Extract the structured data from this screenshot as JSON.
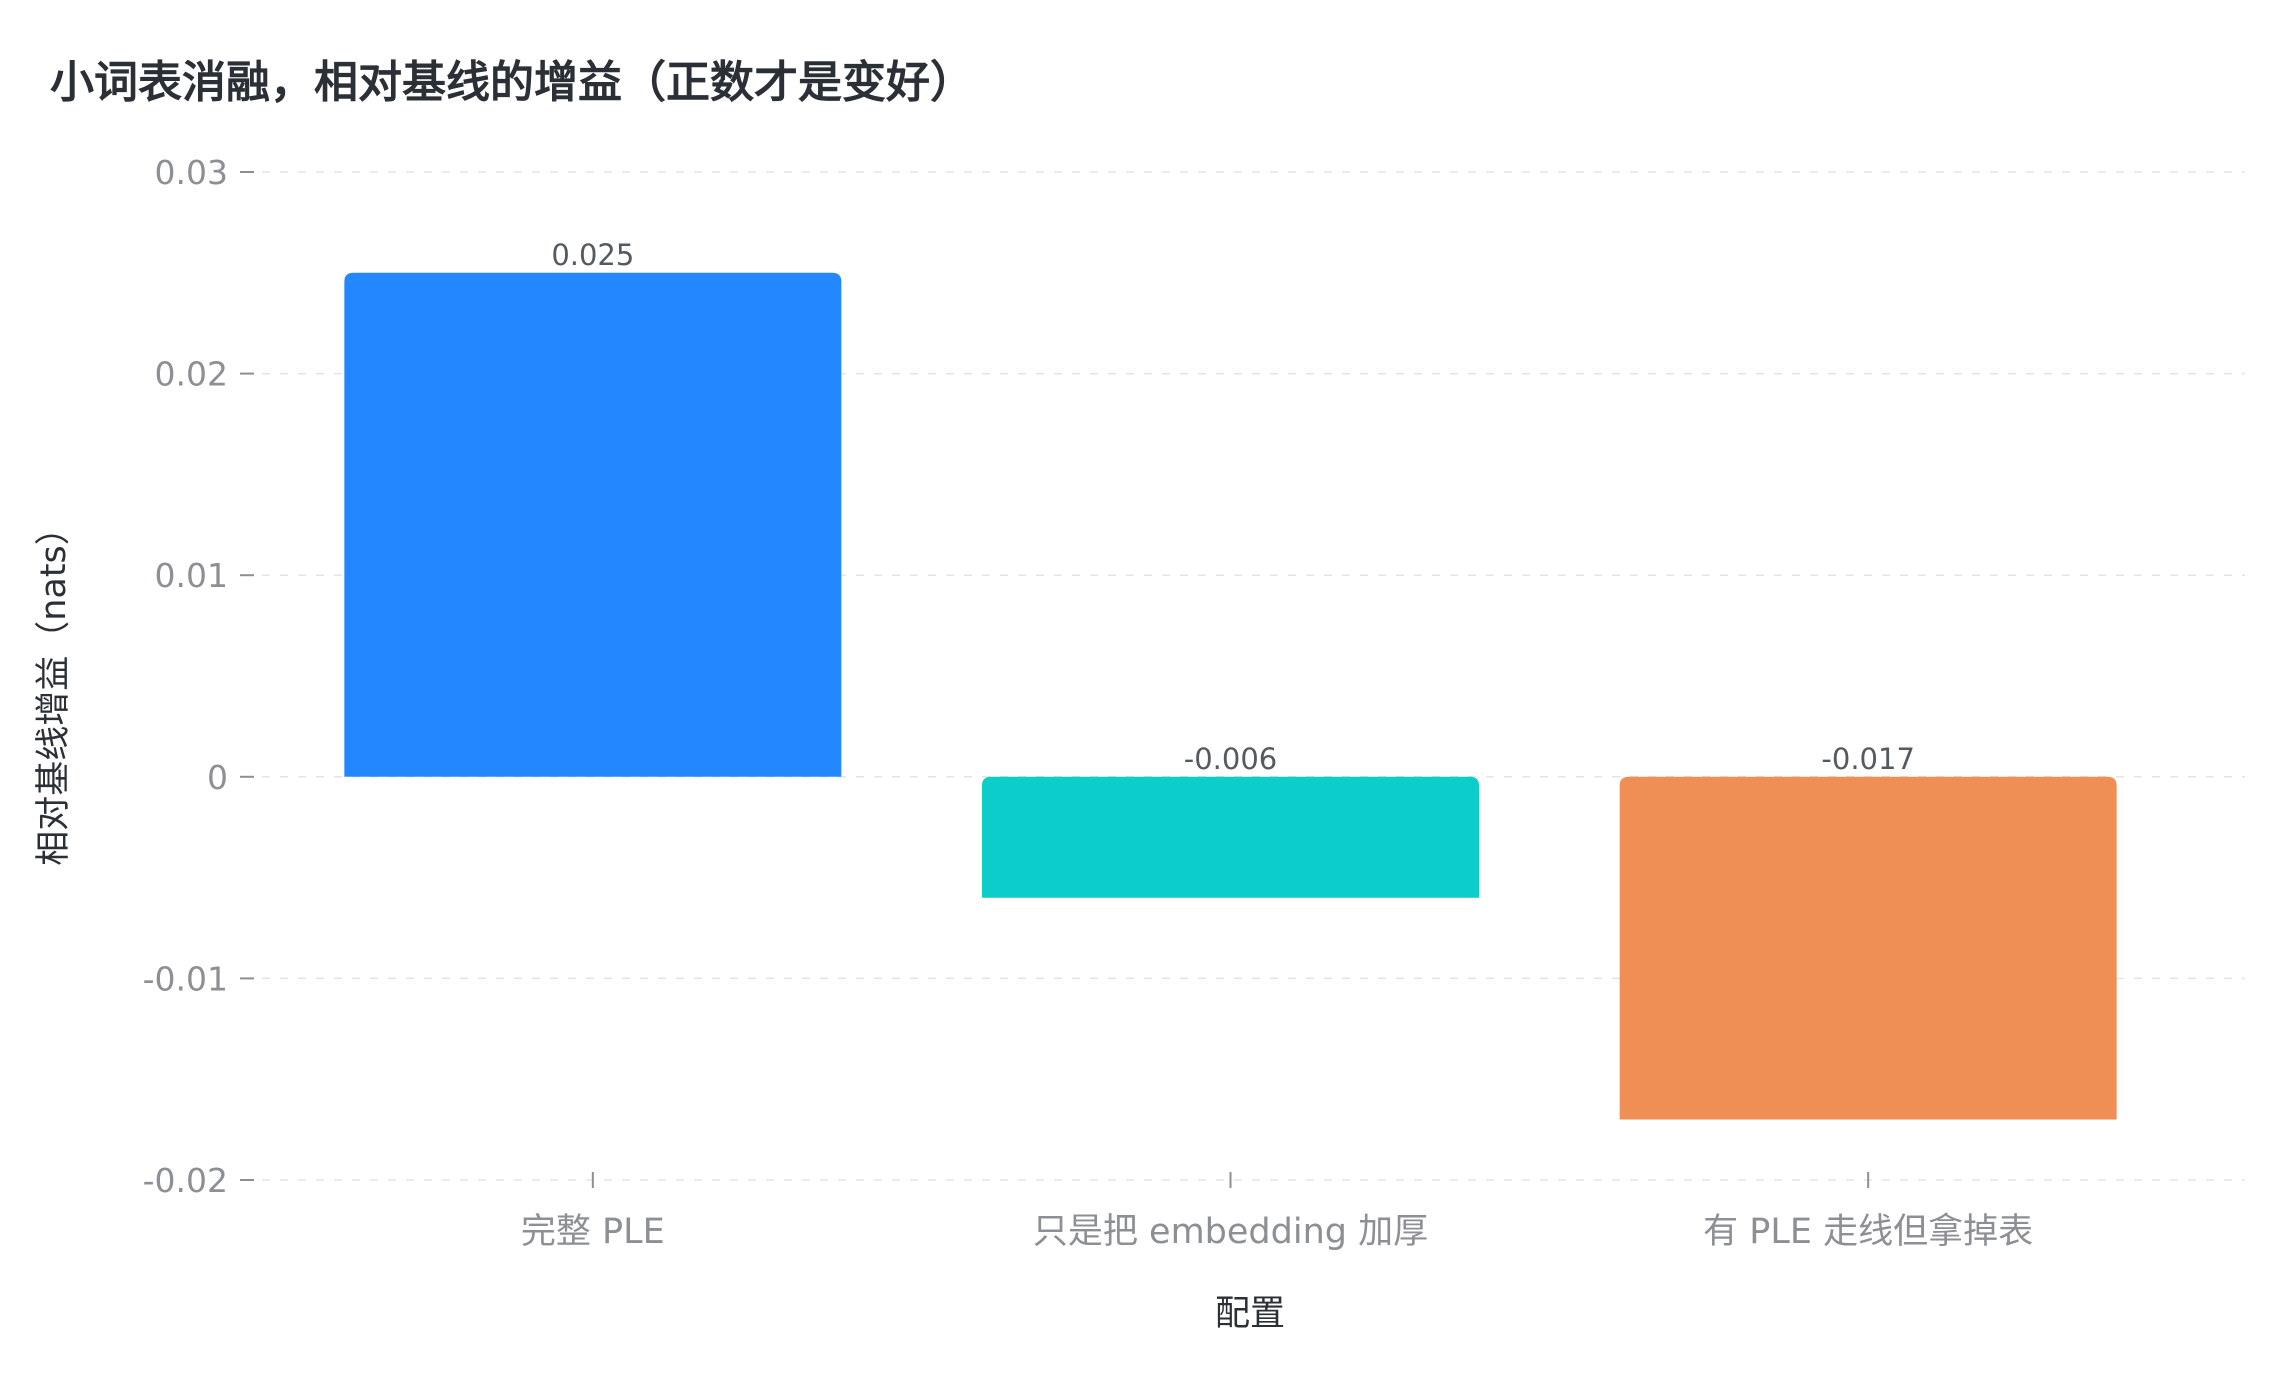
{
  "chart_data": {
    "type": "bar",
    "title": "小词表消融，相对基线的增益（正数才是变好）",
    "xlabel": "配置",
    "ylabel": "相对基线增益（nats）",
    "categories": [
      "完整 PLE",
      "只是把 embedding 加厚",
      "有 PLE 走线但拿掉表"
    ],
    "values": [
      0.025,
      -0.006,
      -0.017
    ],
    "data_labels": [
      "0.025",
      "-0.006",
      "-0.017"
    ],
    "colors": [
      "#2388ff",
      "#0ccdca",
      "#f08f55"
    ],
    "ylim": [
      -0.02,
      0.03
    ],
    "yticks": [
      -0.02,
      -0.01,
      0,
      0.01,
      0.02,
      0.03
    ],
    "ytick_labels": [
      "-0.02",
      "-0.01",
      "0",
      "0.01",
      "0.02",
      "0.03"
    ],
    "grid": true,
    "legend": false
  }
}
